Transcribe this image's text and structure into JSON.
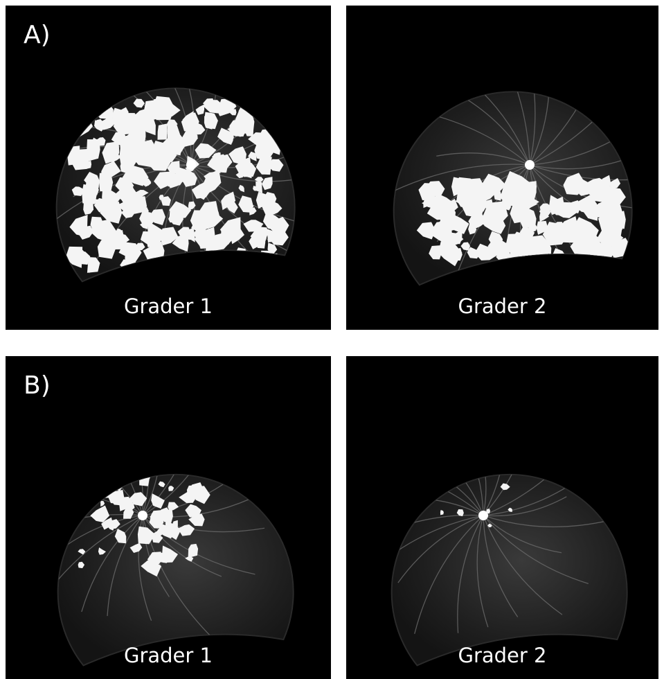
{
  "panels": [
    {
      "label": "A)",
      "images": [
        {
          "caption": "Grader 1"
        },
        {
          "caption": "Grader 2"
        }
      ]
    },
    {
      "label": "B)",
      "images": [
        {
          "caption": "Grader 1"
        },
        {
          "caption": "Grader 2"
        }
      ]
    }
  ]
}
